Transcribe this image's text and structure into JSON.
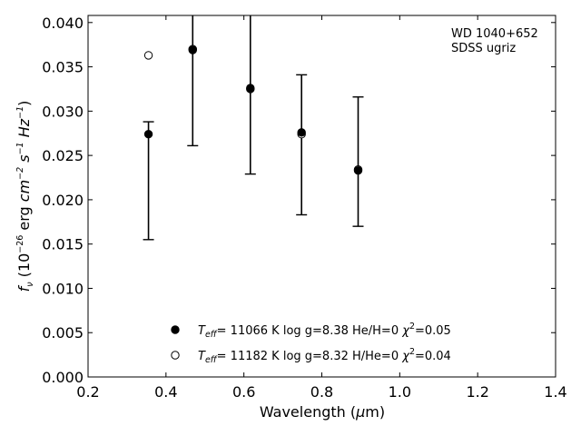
{
  "chart_data": {
    "type": "scatter",
    "title": "",
    "annotation": {
      "line1": "WD 1040+652",
      "line2": "SDSS ugriz"
    },
    "xlabel": "Wavelength (μm)",
    "xlabel_parts": {
      "pre": "Wavelength (",
      "mu": "μ",
      "post": "m)"
    },
    "ylabel": "fν (10⁻²⁶ erg cm⁻² s⁻¹ Hz⁻¹)",
    "ylabel_parts": {
      "f": "f",
      "nu": "ν",
      "open": " (10",
      "exp26": "−26",
      "erg": " erg ",
      "cm": "cm",
      "exp2": "−2",
      "s": " s",
      "exp1a": "−1",
      "hz": " Hz",
      "exp1b": "−1",
      "close": ")"
    },
    "xlim": [
      0.2,
      1.4
    ],
    "ylim": [
      0.0,
      0.0408
    ],
    "xticks": [
      0.2,
      0.4,
      0.6,
      0.8,
      1.0,
      1.2,
      1.4
    ],
    "xtick_labels": [
      "0.2",
      "0.4",
      "0.6",
      "0.8",
      "1.0",
      "1.2",
      "1.4"
    ],
    "yticks": [
      0.0,
      0.005,
      0.01,
      0.015,
      0.02,
      0.025,
      0.03,
      0.035,
      0.04
    ],
    "ytick_labels": [
      "0.000",
      "0.005",
      "0.010",
      "0.015",
      "0.020",
      "0.025",
      "0.030",
      "0.035",
      "0.040"
    ],
    "grid": false,
    "legend_position": "bottom-center",
    "observed": {
      "x": [
        0.3551,
        0.4686,
        0.6166,
        0.748,
        0.8932
      ],
      "y": [
        0.0274,
        0.0369,
        0.0326,
        0.0276,
        0.0233
      ],
      "yerr_low": [
        0.0155,
        0.0261,
        0.0229,
        0.0183,
        0.017
      ],
      "yerr_high": [
        0.0288,
        0.0413,
        0.0413,
        0.0341,
        0.0316
      ]
    },
    "series": [
      {
        "name": "Teff= 11066 K  log g=8.38  He/H=0  χ²=0.05",
        "marker": "filled-circle",
        "x": [
          0.3551,
          0.4686,
          0.6166,
          0.748,
          0.8932
        ],
        "y": [
          0.0274,
          0.0369,
          0.0326,
          0.0276,
          0.0233
        ],
        "legend_parts": {
          "t": "T",
          "sub": "eff",
          "body": "= 11066 K  log g=8.38  He/H=0  ",
          "chi": "χ",
          "sup": "2",
          "tail": "=0.05"
        }
      },
      {
        "name": "Teff= 11182 K  log g=8.32  H/He=0  χ²=0.04",
        "marker": "open-circle",
        "x": [
          0.3551,
          0.4686,
          0.6166,
          0.748,
          0.8932
        ],
        "y": [
          0.0363,
          0.037,
          0.0325,
          0.0274,
          0.0234
        ],
        "legend_parts": {
          "t": "T",
          "sub": "eff",
          "body": "= 11182 K  log g=8.32  H/He=0  ",
          "chi": "χ",
          "sup": "2",
          "tail": "=0.04"
        }
      }
    ]
  }
}
